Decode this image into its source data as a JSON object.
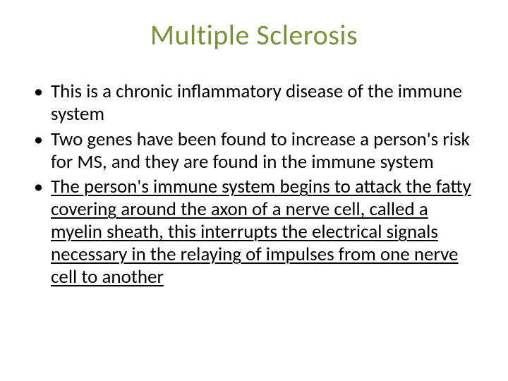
{
  "slide": {
    "title": "Multiple Sclerosis",
    "title_color": "#76923c",
    "body_color": "#000000",
    "background_color": "#ffffff",
    "title_fontsize": 40,
    "body_fontsize": 27,
    "bullets": [
      {
        "text": "This is a chronic inflammatory disease of the immune system",
        "underlined": false
      },
      {
        "text": "Two genes have been found to increase a person's risk for MS, and they are found in the immune system",
        "underlined": false
      },
      {
        "text": "The person's immune system begins to attack the fatty covering around the axon of a nerve cell, called a myelin sheath, this interrupts the electrical  signals necessary in the relaying of impulses from one nerve cell to another",
        "underlined": true
      }
    ]
  }
}
